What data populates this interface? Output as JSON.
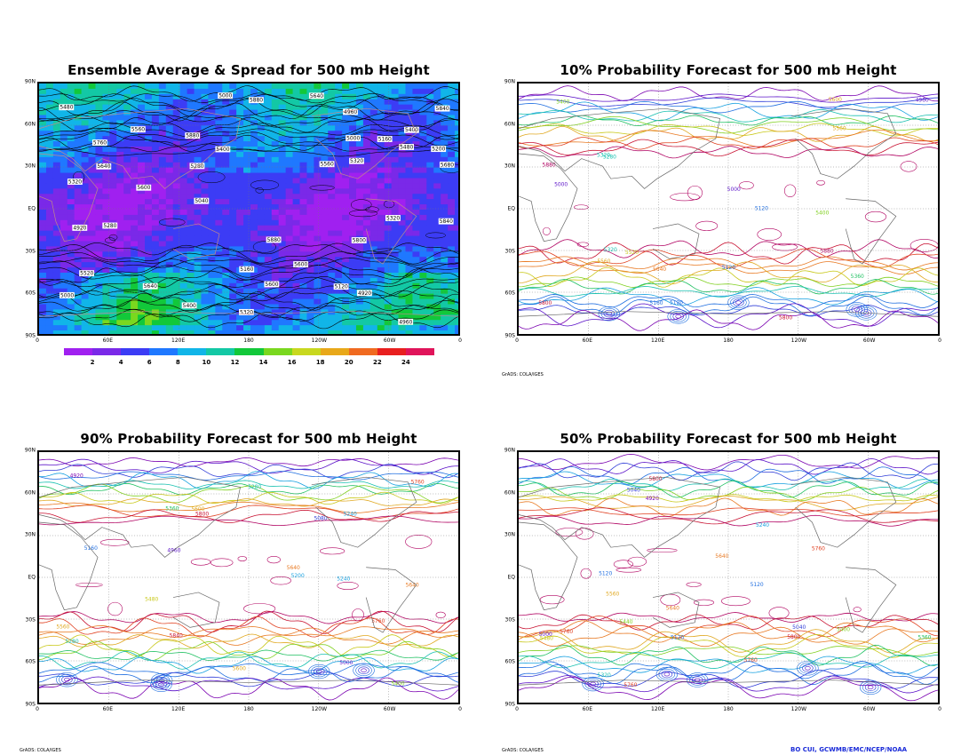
{
  "panels": [
    {
      "id": "p1",
      "title": "Ensemble Average & Spread for 500 mb Height",
      "credit": ""
    },
    {
      "id": "p2",
      "title": "10% Probability Forecast for 500 mb Height",
      "credit": "GrADS: COLA/IGES"
    },
    {
      "id": "p3",
      "title": "90% Probability Forecast for 500 mb Height",
      "credit": "GrADS: COLA/IGES"
    },
    {
      "id": "p4",
      "title": "50% Probability Forecast for 500 mb Height",
      "credit": "GrADS: COLA/IGES"
    }
  ],
  "lat_ticks": [
    "90N",
    "60N",
    "30N",
    "EQ",
    "30S",
    "60S",
    "90S"
  ],
  "lon_ticks": [
    "0",
    "60E",
    "120E",
    "180",
    "120W",
    "60W",
    "0"
  ],
  "signature": "BO CUI, GCWMB/EMC/NCEP/NOAA",
  "colorbar": {
    "labels": [
      "2",
      "4",
      "6",
      "8",
      "10",
      "12",
      "14",
      "16",
      "18",
      "20",
      "22",
      "24"
    ],
    "colors": [
      "#a020f0",
      "#7a29e8",
      "#3c3cf5",
      "#1f78ff",
      "#11b5e8",
      "#13c8a5",
      "#12c83a",
      "#7ad81f",
      "#c8d81f",
      "#e8a81a",
      "#f06a20",
      "#e81f1f",
      "#e0145a"
    ]
  },
  "chart_data": {
    "type": "heatmap",
    "variable": "500 mb Height",
    "contour_labels": [
      "4920",
      "4960",
      "5000",
      "5040",
      "5080",
      "5120",
      "5160",
      "5200",
      "5240",
      "5280",
      "5320",
      "5360",
      "5400",
      "5440",
      "5480",
      "5520",
      "5560",
      "5600",
      "5640",
      "5680",
      "5720",
      "5760",
      "5800",
      "5840",
      "5880"
    ],
    "panels": [
      "Ensemble Average & Spread",
      "10% Probability Forecast",
      "90% Probability Forecast",
      "50% Probability Forecast"
    ],
    "spread_range": [
      2,
      24
    ],
    "lat_range": [
      -90,
      90
    ],
    "lon_range": [
      0,
      360
    ]
  },
  "contour_colors": [
    "#7a00b0",
    "#5a10c8",
    "#2f3cd8",
    "#1f6ee0",
    "#15a0e0",
    "#18c0b0",
    "#1ec060",
    "#80d020",
    "#c8c818",
    "#e0a820",
    "#e87820",
    "#e04020",
    "#c81030",
    "#b00060"
  ]
}
